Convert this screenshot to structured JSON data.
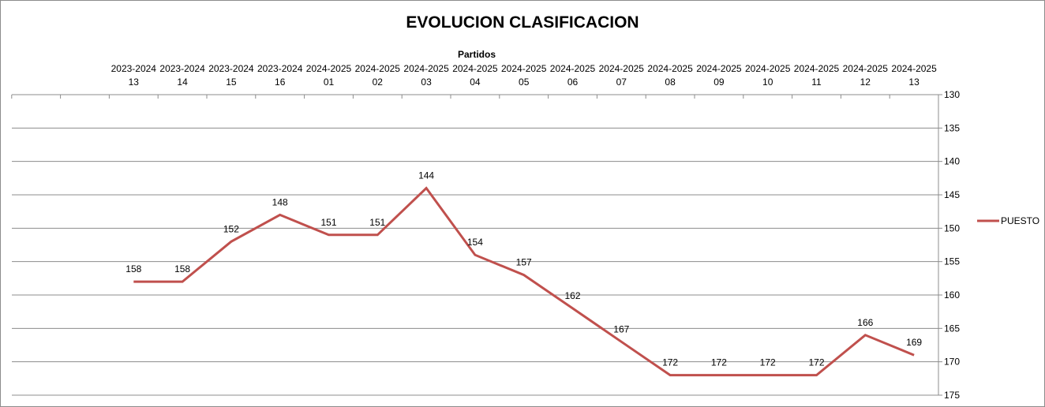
{
  "chart_data": {
    "type": "line",
    "title": "EVOLUCION CLASIFICACION",
    "xlabel": "Partidos",
    "ylabel": "",
    "ylim": [
      130,
      175
    ],
    "y_inverted": true,
    "x_axis_position": "top",
    "y_axis_position": "right",
    "ytick_step": 5,
    "grid": true,
    "legend_position": "right",
    "categories": [
      [
        "",
        ""
      ],
      [
        "",
        ""
      ],
      [
        "2023-2024",
        "13"
      ],
      [
        "2023-2024",
        "14"
      ],
      [
        "2023-2024",
        "15"
      ],
      [
        "2023-2024",
        "16"
      ],
      [
        "2024-2025",
        "01"
      ],
      [
        "2024-2025",
        "02"
      ],
      [
        "2024-2025",
        "03"
      ],
      [
        "2024-2025",
        "04"
      ],
      [
        "2024-2025",
        "05"
      ],
      [
        "2024-2025",
        "06"
      ],
      [
        "2024-2025",
        "07"
      ],
      [
        "2024-2025",
        "08"
      ],
      [
        "2024-2025",
        "09"
      ],
      [
        "2024-2025",
        "10"
      ],
      [
        "2024-2025",
        "11"
      ],
      [
        "2024-2025",
        "12"
      ],
      [
        "2024-2025",
        "13"
      ]
    ],
    "series": [
      {
        "name": "PUESTO",
        "color": "#c0504d",
        "values": [
          null,
          null,
          158,
          158,
          152,
          148,
          151,
          151,
          144,
          154,
          157,
          162,
          167,
          172,
          172,
          172,
          172,
          166,
          169
        ]
      }
    ]
  }
}
